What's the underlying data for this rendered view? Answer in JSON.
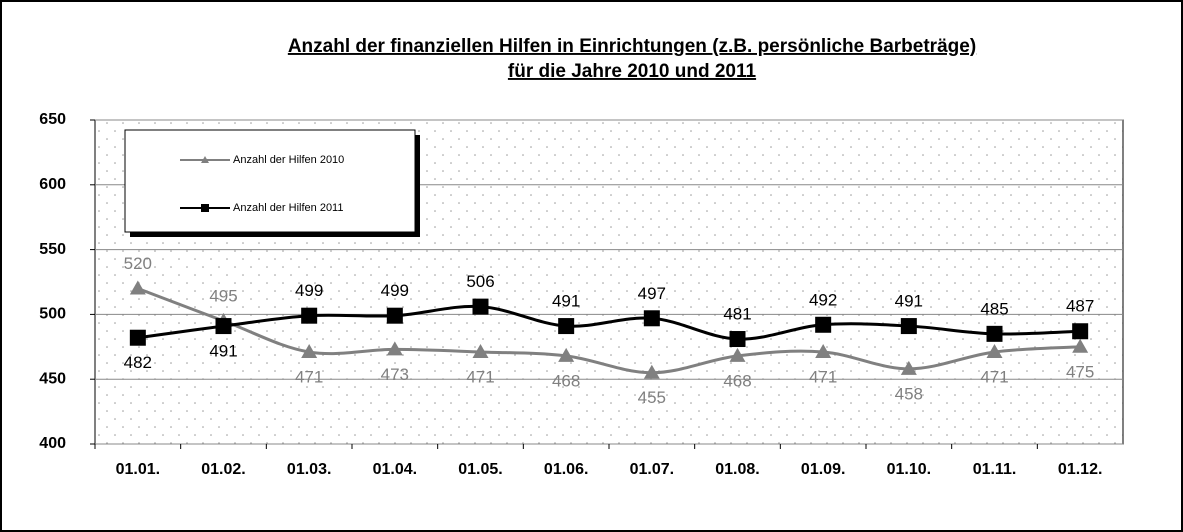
{
  "chart_data": {
    "type": "line",
    "title": "Anzahl der finanziellen Hilfen in Einrichtungen (z.B. persönliche Barbeträge)",
    "subtitle": "für die Jahre 2010 und 2011",
    "categories": [
      "01.01.",
      "01.02.",
      "01.03.",
      "01.04.",
      "01.05.",
      "01.06.",
      "01.07.",
      "01.08.",
      "01.09.",
      "01.10.",
      "01.11.",
      "01.12."
    ],
    "series": [
      {
        "name": "Anzahl der Hilfen 2010",
        "color": "#808080",
        "marker": "triangle",
        "values": [
          520,
          495,
          471,
          473,
          471,
          468,
          455,
          468,
          471,
          458,
          471,
          475
        ]
      },
      {
        "name": "Anzahl der Hilfen 2011",
        "color": "#000000",
        "marker": "square",
        "values": [
          482,
          491,
          499,
          499,
          506,
          491,
          497,
          481,
          492,
          491,
          485,
          487
        ]
      }
    ],
    "ylim": [
      400,
      650
    ],
    "yticks": [
      400,
      450,
      500,
      550,
      600,
      650
    ],
    "grid": true,
    "legend": "upper left"
  }
}
